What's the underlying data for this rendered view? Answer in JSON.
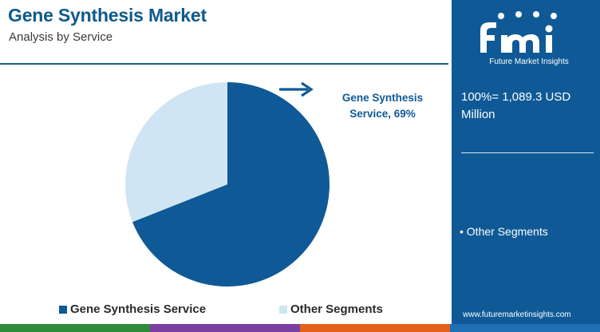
{
  "header": {
    "title": "Gene Synthesis Market",
    "subtitle": "Analysis by Service"
  },
  "logo": {
    "wordmark": "fmi",
    "tagline": "Future Market Insights",
    "icon": "fmi-logo-icon"
  },
  "panel": {
    "total_text": "100%= 1,089.3 USD Million",
    "bullet_text": "• Other Segments",
    "url": "www.futuremarketinsights.com"
  },
  "callout": {
    "line1": "Gene Synthesis",
    "line2": "Service, 69%",
    "icon": "arrow-right-icon"
  },
  "chart_data": {
    "type": "pie",
    "total_value": 1089.3,
    "total_unit": "USD Million",
    "slices": [
      {
        "name": "Gene Synthesis Service",
        "value": 69,
        "color": "#0f5a96"
      },
      {
        "name": "Other Segments",
        "value": 31,
        "color": "#cfe5f3"
      }
    ],
    "legend": {
      "position": "bottom",
      "entries": [
        "Gene Synthesis Service",
        "Other Segments"
      ]
    }
  },
  "colors": {
    "primary": "#0f5a96",
    "light": "#cfe5f3",
    "bottom_bar": [
      "#2e8b3a",
      "#7a3fa0",
      "#e2621b",
      "#1f6fb5"
    ]
  }
}
